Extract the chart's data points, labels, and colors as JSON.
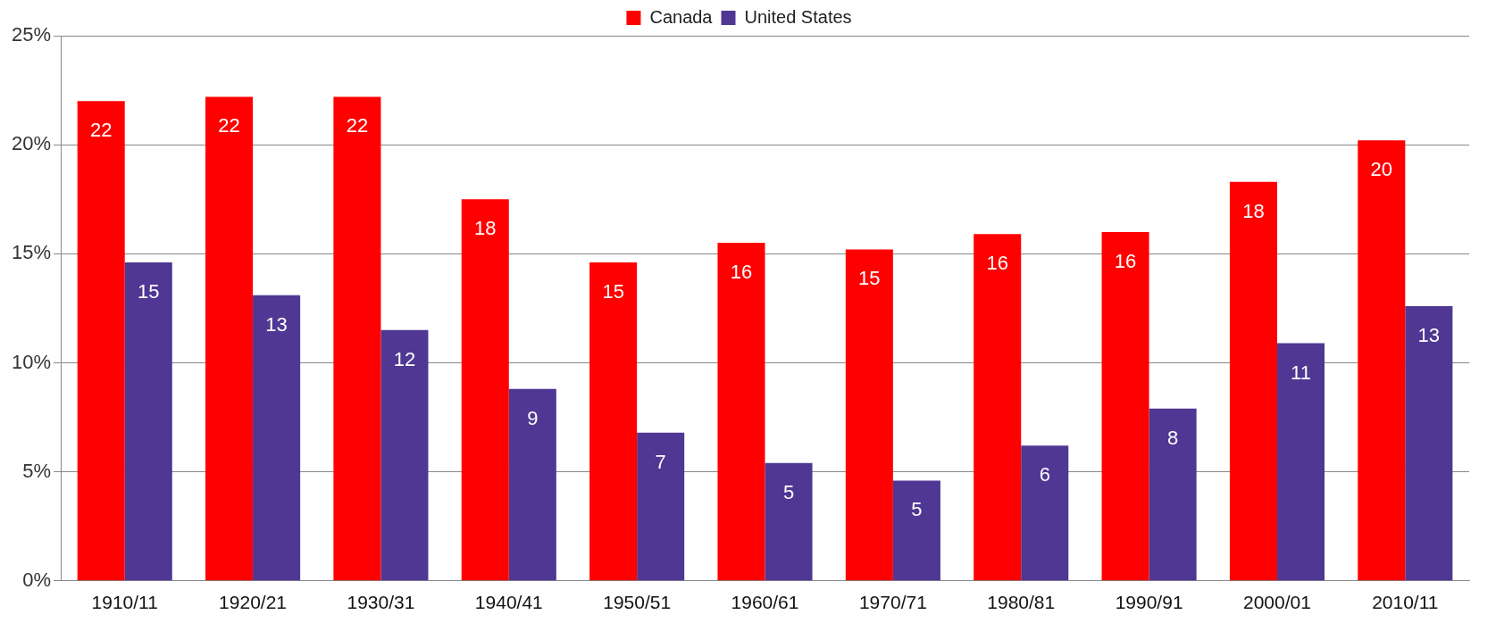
{
  "chart_data": {
    "type": "bar",
    "categories": [
      "1910/11",
      "1920/21",
      "1930/31",
      "1940/41",
      "1950/51",
      "1960/61",
      "1970/71",
      "1980/81",
      "1990/91",
      "2000/01",
      "2010/11"
    ],
    "series": [
      {
        "name": "Canada",
        "color": "#ff0000",
        "values": [
          22.0,
          22.2,
          22.2,
          17.5,
          14.6,
          15.5,
          15.2,
          15.9,
          16.0,
          18.3,
          20.2
        ],
        "value_labels": [
          "22",
          "22",
          "22",
          "18",
          "15",
          "16",
          "15",
          "16",
          "16",
          "18",
          "20"
        ]
      },
      {
        "name": "United States",
        "color": "#4f3793",
        "values": [
          14.6,
          13.1,
          11.5,
          8.8,
          6.8,
          5.4,
          4.6,
          6.2,
          7.9,
          10.9,
          12.6
        ],
        "value_labels": [
          "15",
          "13",
          "12",
          "9",
          "7",
          "5",
          "5",
          "6",
          "8",
          "11",
          "13"
        ]
      }
    ],
    "ylim": [
      0,
      25
    ],
    "yticks": [
      {
        "value": 0,
        "label": "0%"
      },
      {
        "value": 5,
        "label": "5%"
      },
      {
        "value": 10,
        "label": "10%"
      },
      {
        "value": 15,
        "label": "15%"
      },
      {
        "value": 20,
        "label": "20%"
      },
      {
        "value": 25,
        "label": "25%"
      }
    ],
    "grid": "y",
    "legend": "top"
  }
}
